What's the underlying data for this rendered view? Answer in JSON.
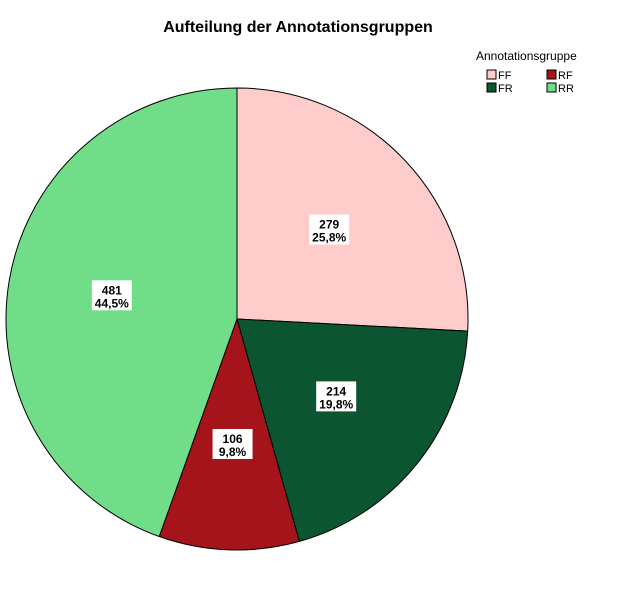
{
  "chart_data": {
    "type": "pie",
    "title": "Aufteilung der Annotationsgruppen",
    "legend_title": "Annotationsgruppe",
    "legend_position": "top-right",
    "categories": [
      "FF",
      "FR",
      "RF",
      "RR"
    ],
    "legend_order": [
      "FF",
      "RF",
      "FR",
      "RR"
    ],
    "slice_order": [
      "FF",
      "FR",
      "RF",
      "RR"
    ],
    "values": [
      279,
      214,
      106,
      481
    ],
    "value_labels": [
      "279",
      "214",
      "106",
      "481"
    ],
    "percent_labels": [
      "25,8%",
      "19,8%",
      "9,8%",
      "44,5%"
    ],
    "colors": {
      "FF": "#FFCCCC",
      "FR": "#0B5530",
      "RF": "#A5141A",
      "RR": "#72DD88"
    }
  }
}
